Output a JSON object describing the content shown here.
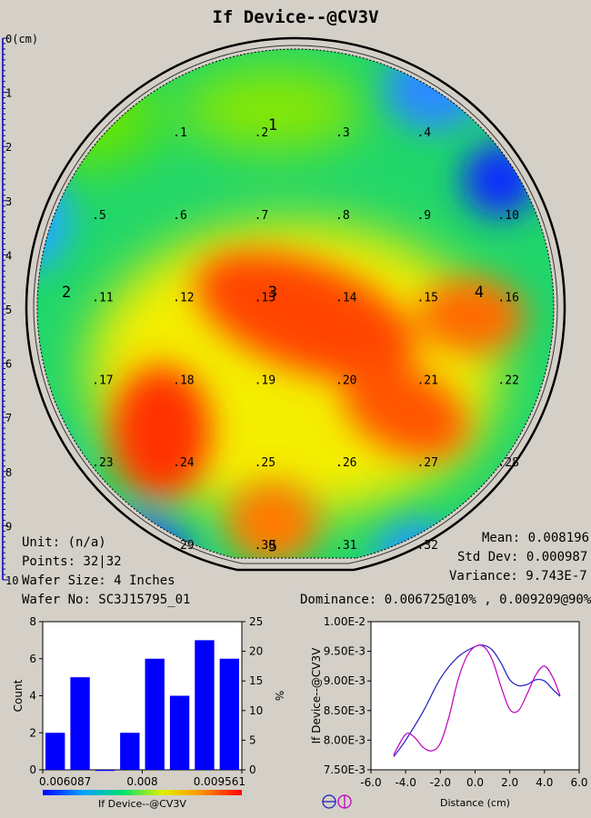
{
  "title": "If Device--@CV3V",
  "ruler": {
    "ticks": [
      "0(cm)",
      "1",
      "2",
      "3",
      "4",
      "5",
      "6",
      "7",
      "8",
      "9",
      "10"
    ]
  },
  "wafer": {
    "site_labels": [
      {
        "label": ".1",
        "gx": -2.42,
        "gy": 3.15
      },
      {
        "label": ".2",
        "gx": -0.45,
        "gy": 3.15
      },
      {
        "label": ".3",
        "gx": 1.52,
        "gy": 3.15
      },
      {
        "label": ".4",
        "gx": 3.49,
        "gy": 3.15
      },
      {
        "label": ".5",
        "gx": -4.38,
        "gy": 1.15
      },
      {
        "label": ".6",
        "gx": -2.42,
        "gy": 1.15
      },
      {
        "label": ".7",
        "gx": -0.45,
        "gy": 1.15
      },
      {
        "label": ".8",
        "gx": 1.52,
        "gy": 1.15
      },
      {
        "label": ".9",
        "gx": 3.49,
        "gy": 1.15
      },
      {
        "label": ".10",
        "gx": 5.45,
        "gy": 1.15
      },
      {
        "label": ".11",
        "gx": -4.38,
        "gy": -0.85
      },
      {
        "label": ".12",
        "gx": -2.42,
        "gy": -0.85
      },
      {
        "label": ".13",
        "gx": -0.45,
        "gy": -0.85
      },
      {
        "label": ".14",
        "gx": 1.52,
        "gy": -0.85
      },
      {
        "label": ".15",
        "gx": 3.49,
        "gy": -0.85
      },
      {
        "label": ".16",
        "gx": 5.45,
        "gy": -0.85
      },
      {
        "label": ".17",
        "gx": -4.38,
        "gy": -2.85
      },
      {
        "label": ".18",
        "gx": -2.42,
        "gy": -2.85
      },
      {
        "label": ".19",
        "gx": -0.45,
        "gy": -2.85
      },
      {
        "label": ".20",
        "gx": 1.52,
        "gy": -2.85
      },
      {
        "label": ".21",
        "gx": 3.49,
        "gy": -2.85
      },
      {
        "label": ".22",
        "gx": 5.45,
        "gy": -2.85
      },
      {
        "label": ".23",
        "gx": -4.38,
        "gy": -4.85
      },
      {
        "label": ".24",
        "gx": -2.42,
        "gy": -4.85
      },
      {
        "label": ".25",
        "gx": -0.45,
        "gy": -4.85
      },
      {
        "label": ".26",
        "gx": 1.52,
        "gy": -4.85
      },
      {
        "label": ".27",
        "gx": 3.49,
        "gy": -4.85
      },
      {
        "label": ".28",
        "gx": 5.45,
        "gy": -4.85
      },
      {
        "label": ".29",
        "gx": -2.42,
        "gy": -6.85
      },
      {
        "label": ".30",
        "gx": -0.45,
        "gy": -6.85
      },
      {
        "label": ".31",
        "gx": 1.52,
        "gy": -6.85
      },
      {
        "label": ".32",
        "gx": 3.49,
        "gy": -6.85
      }
    ],
    "zone_labels": [
      {
        "label": "1",
        "gx": 0.0,
        "gy": 3.3
      },
      {
        "label": "2",
        "gx": -5.0,
        "gy": -0.75
      },
      {
        "label": "3",
        "gx": 0.0,
        "gy": -0.75
      },
      {
        "label": "4",
        "gx": 5.0,
        "gy": -0.75
      },
      {
        "label": "5",
        "gx": 0.0,
        "gy": -6.9
      }
    ],
    "blobs": [
      {
        "color": "#ff4500",
        "gx": 0.8,
        "gy": -1.2,
        "rx": 2.8,
        "ry": 1.3,
        "rot": 20
      },
      {
        "color": "#ff3000",
        "gx": -2.7,
        "gy": -4.0,
        "rx": 1.2,
        "ry": 1.6,
        "rot": 0
      },
      {
        "color": "#ff6a00",
        "gx": 4.8,
        "gy": -1.2,
        "rx": 1.3,
        "ry": 0.9,
        "rot": 0
      },
      {
        "color": "#ff5500",
        "gx": 3.2,
        "gy": -3.5,
        "rx": 1.6,
        "ry": 1.0,
        "rot": 25
      },
      {
        "color": "#ff7a00",
        "gx": 0.0,
        "gy": -6.2,
        "rx": 1.1,
        "ry": 1.0,
        "rot": 0
      },
      {
        "color": "#2a8cff",
        "gx": 3.9,
        "gy": 4.3,
        "rx": 1.2,
        "ry": 1.0,
        "rot": 0
      },
      {
        "color": "#0a2cff",
        "gx": 5.5,
        "gy": 2.1,
        "rx": 0.9,
        "ry": 0.9,
        "rot": 0
      },
      {
        "color": "#22aaff",
        "gx": -5.9,
        "gy": 1.1,
        "rx": 1.0,
        "ry": 1.2,
        "rot": 0
      },
      {
        "color": "#22aaff",
        "gx": -5.9,
        "gy": -4.9,
        "rx": 0.9,
        "ry": 1.1,
        "rot": 0
      },
      {
        "color": "#1a55ff",
        "gx": -3.2,
        "gy": -7.0,
        "rx": 1.2,
        "ry": 0.9,
        "rot": 0
      },
      {
        "color": "#2299ff",
        "gx": 3.5,
        "gy": -7.0,
        "rx": 1.0,
        "ry": 0.8,
        "rot": 0
      }
    ]
  },
  "info": {
    "unit": "Unit: (n/a)",
    "points": "Points: 32|32",
    "wafer_size": "Wafer Size: 4 Inches",
    "wafer_no": "Wafer No: SC3J15795_01"
  },
  "stats": {
    "mean": "Mean: 0.008196",
    "std_dev": "Std Dev: 0.000987",
    "variance": "Variance: 9.743E-7",
    "dominance": "Dominance: 0.006725@10% , 0.009209@90%"
  },
  "chart_data": [
    {
      "type": "bar",
      "title": "",
      "xlabel": "If Device--@CV3V",
      "ylabel": "Count",
      "y2label": "%",
      "counts": [
        2,
        5,
        0,
        2,
        6,
        4,
        7,
        6
      ],
      "ylim": [
        0,
        8
      ],
      "y2lim": [
        0,
        25
      ],
      "yticks": [
        "0",
        "2",
        "4",
        "6",
        "8"
      ],
      "y2ticks": [
        "0",
        "5",
        "10",
        "15",
        "20",
        "25"
      ],
      "x_tick_labels": [
        "0.006087",
        "0.008",
        "0.009561"
      ],
      "bar_color": "#0000ff"
    },
    {
      "type": "line",
      "title": "",
      "xlabel": "Distance (cm)",
      "ylabel": "If Device--@CV3V",
      "xlim": [
        -6.0,
        6.0
      ],
      "ylim": [
        0.0075,
        0.01
      ],
      "xticks": [
        "-6.0",
        "-4.0",
        "-2.0",
        "0.0",
        "2.0",
        "4.0",
        "6.0"
      ],
      "yticks": [
        "7.50E-3",
        "8.00E-3",
        "8.50E-3",
        "9.00E-3",
        "9.50E-3",
        "1.00E-2"
      ],
      "series": [
        {
          "color": "#2020c0",
          "x": [
            -4.7,
            -4.0,
            -3.0,
            -2.0,
            -1.0,
            0.0,
            0.5,
            1.0,
            1.5,
            2.0,
            2.5,
            3.0,
            3.5,
            4.0,
            4.5,
            4.9
          ],
          "y": [
            0.00772,
            0.008,
            0.00848,
            0.00904,
            0.0094,
            0.00958,
            0.0096,
            0.00952,
            0.0093,
            0.00902,
            0.00892,
            0.00894,
            0.00902,
            0.009,
            0.00885,
            0.00874
          ]
        },
        {
          "color": "#c000c0",
          "x": [
            -4.7,
            -4.0,
            -3.5,
            -3.0,
            -2.5,
            -2.0,
            -1.5,
            -1.0,
            -0.5,
            0.0,
            0.5,
            1.0,
            1.5,
            2.0,
            2.5,
            3.0,
            3.5,
            4.0,
            4.5,
            4.9
          ],
          "y": [
            0.00775,
            0.0081,
            0.00805,
            0.00788,
            0.00782,
            0.00795,
            0.0084,
            0.009,
            0.0094,
            0.00958,
            0.00958,
            0.00935,
            0.0089,
            0.00852,
            0.0085,
            0.00878,
            0.0091,
            0.00925,
            0.00905,
            0.00875
          ]
        }
      ]
    }
  ]
}
